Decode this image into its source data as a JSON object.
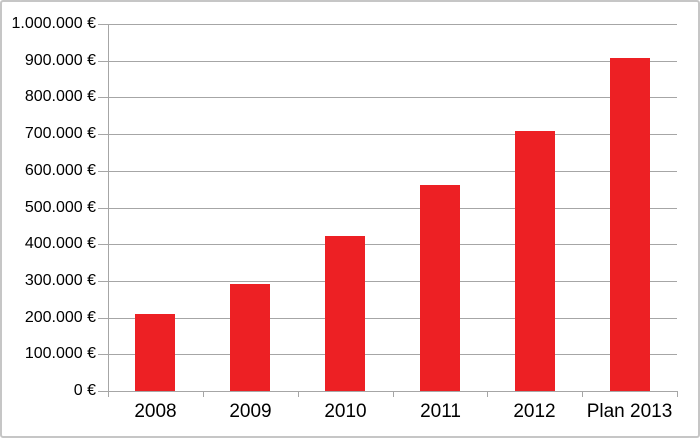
{
  "chart_data": {
    "type": "bar",
    "title": "",
    "xlabel": "",
    "ylabel": "",
    "categories": [
      "2008",
      "2009",
      "2010",
      "2011",
      "2012",
      "Plan 2013"
    ],
    "values": [
      210000,
      292000,
      422000,
      561000,
      708000,
      906000
    ],
    "unit": "€",
    "ylim": [
      0,
      1000000
    ],
    "ytick_step": 100000,
    "ytick_labels": [
      "0 €",
      "100.000 €",
      "200.000 €",
      "300.000 €",
      "400.000 €",
      "500.000 €",
      "600.000 €",
      "700.000 €",
      "800.000 €",
      "900.000 €",
      "1.000.000 €"
    ],
    "grid": true,
    "legend": false,
    "colors": {
      "bar": "#ED2024",
      "grid": "#A6A6A6",
      "axis": "#A6A6A6",
      "text": "#000000",
      "background": "#FFFFFF",
      "frame_border": "#C6C6C6"
    }
  }
}
